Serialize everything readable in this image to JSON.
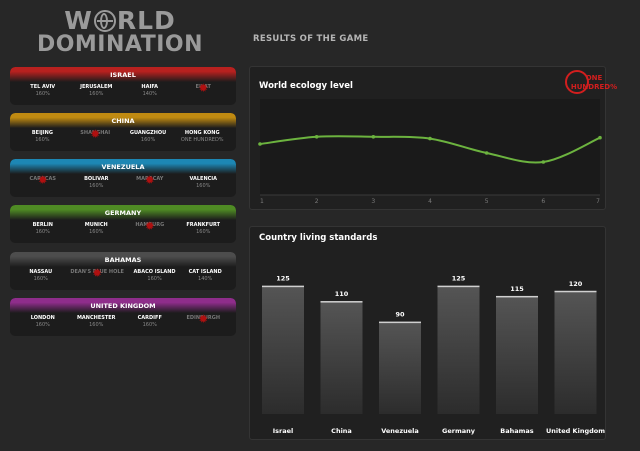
{
  "logo": {
    "line1_a": "WORLD",
    "line1_b": "RLD",
    "line1_w": "W",
    "line2": "DOMINATION"
  },
  "results_title": "RESULTS OF THE GAME",
  "countries": [
    {
      "name": "ISRAEL",
      "color": "#b8211f",
      "cities": [
        {
          "name": "TEL AVIV",
          "pct": "160%",
          "destroyed": false
        },
        {
          "name": "JERUSALEM",
          "pct": "160%",
          "destroyed": false
        },
        {
          "name": "HAIFA",
          "pct": "140%",
          "destroyed": false
        },
        {
          "name": "EILAT",
          "pct": "",
          "destroyed": true
        }
      ]
    },
    {
      "name": "CHINA",
      "color": "#c08a11",
      "cities": [
        {
          "name": "BEIJING",
          "pct": "160%",
          "destroyed": false
        },
        {
          "name": "SHANGHAI",
          "pct": "",
          "destroyed": true
        },
        {
          "name": "GUANGZHOU",
          "pct": "160%",
          "destroyed": false
        },
        {
          "name": "HONG KONG",
          "pct": "ONE HUNDRED%",
          "destroyed": false
        }
      ]
    },
    {
      "name": "VENEZUELA",
      "color": "#1d87b4",
      "cities": [
        {
          "name": "CARACAS",
          "pct": "",
          "destroyed": true
        },
        {
          "name": "BOLIVAR",
          "pct": "160%",
          "destroyed": false
        },
        {
          "name": "MARACAY",
          "pct": "",
          "destroyed": true
        },
        {
          "name": "VALENCIA",
          "pct": "160%",
          "destroyed": false
        }
      ]
    },
    {
      "name": "GERMANY",
      "color": "#4f8b24",
      "cities": [
        {
          "name": "BERLIN",
          "pct": "160%",
          "destroyed": false
        },
        {
          "name": "MUNICH",
          "pct": "160%",
          "destroyed": false
        },
        {
          "name": "HAMBURG",
          "pct": "",
          "destroyed": true
        },
        {
          "name": "FRANKFURT",
          "pct": "160%",
          "destroyed": false
        }
      ]
    },
    {
      "name": "BAHAMAS",
      "color": "#4d4d4d",
      "cities": [
        {
          "name": "NASSAU",
          "pct": "160%",
          "destroyed": false
        },
        {
          "name": "DEAN'S BLUE HOLE",
          "pct": "",
          "destroyed": true
        },
        {
          "name": "ABACO ISLAND",
          "pct": "160%",
          "destroyed": false
        },
        {
          "name": "CAT ISLAND",
          "pct": "140%",
          "destroyed": false
        }
      ]
    },
    {
      "name": "UNITED KINGDOM",
      "color": "#8f2d8b",
      "cities": [
        {
          "name": "LONDON",
          "pct": "160%",
          "destroyed": false
        },
        {
          "name": "MANCHESTER",
          "pct": "160%",
          "destroyed": false
        },
        {
          "name": "CARDIFF",
          "pct": "160%",
          "destroyed": false
        },
        {
          "name": "EDINBURGH",
          "pct": "",
          "destroyed": true
        }
      ]
    }
  ],
  "ecology": {
    "title": "World ecology level",
    "stamp": "ONE HUNDRED%",
    "line_color": "#6cb33f"
  },
  "living": {
    "title": "Country living standards"
  },
  "chart_data": [
    {
      "type": "line",
      "title": "World ecology level",
      "x": [
        1,
        2,
        3,
        4,
        5,
        6,
        7
      ],
      "values": [
        50,
        58,
        58,
        56,
        40,
        30,
        57
      ],
      "ylim": [
        0,
        100
      ],
      "grid": false
    },
    {
      "type": "bar",
      "title": "Country living standards",
      "categories": [
        "Israel",
        "China",
        "Venezuela",
        "Germany",
        "Bahamas",
        "United Kingdom"
      ],
      "values": [
        125,
        110,
        90,
        125,
        115,
        120
      ],
      "ylim": [
        0,
        150
      ]
    }
  ]
}
